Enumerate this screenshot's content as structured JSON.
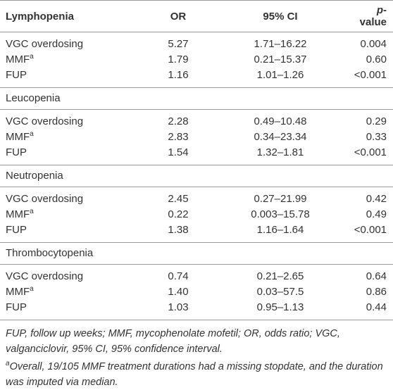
{
  "table": {
    "header": {
      "columns": [
        "OR",
        "95% CI"
      ],
      "p_italic": "p",
      "p_rest": "-value"
    },
    "sections": [
      {
        "title": "Lymphopenia",
        "rows": [
          {
            "label": "VGC overdosing",
            "or": "5.27",
            "ci": "1.71–16.22",
            "p": "0.004"
          },
          {
            "label": "MMF",
            "sup": "a",
            "or": "1.79",
            "ci": "0.21–15.37",
            "p": "0.60"
          },
          {
            "label": "FUP",
            "or": "1.16",
            "ci": "1.01–1.26",
            "p": "<0.001"
          }
        ]
      },
      {
        "title": "Leucopenia",
        "rows": [
          {
            "label": "VGC overdosing",
            "or": "2.28",
            "ci": "0.49–10.48",
            "p": "0.29"
          },
          {
            "label": "MMF",
            "sup": "a",
            "or": "2.83",
            "ci": "0.34–23.34",
            "p": "0.33"
          },
          {
            "label": "FUP",
            "or": "1.54",
            "ci": "1.32–1.81",
            "p": "<0.001"
          }
        ]
      },
      {
        "title": "Neutropenia",
        "rows": [
          {
            "label": "VGC overdosing",
            "or": "2.45",
            "ci": "0.27–21.99",
            "p": "0.42"
          },
          {
            "label": "MMF",
            "sup": "a",
            "or": "0.22",
            "ci": "0.003–15.78",
            "p": "0.49"
          },
          {
            "label": "FUP",
            "or": "1.38",
            "ci": "1.16–1.64",
            "p": "<0.001"
          }
        ]
      },
      {
        "title": "Thrombocytopenia",
        "rows": [
          {
            "label": "VGC overdosing",
            "or": "0.74",
            "ci": "0.21–2.65",
            "p": "0.64"
          },
          {
            "label": "MMF",
            "sup": "a",
            "or": "1.40",
            "ci": "0.03–57.5",
            "p": "0.86"
          },
          {
            "label": "FUP",
            "or": "1.03",
            "ci": "0.95–1.13",
            "p": "0.44"
          }
        ]
      }
    ],
    "footnotes": [
      {
        "text": "FUP, follow up weeks; MMF, mycophenolate mofetil; OR, odds ratio; VGC, valganciclovir, 95% CI, 95% confidence interval."
      },
      {
        "sup": "a",
        "text": "Overall, 19/105 MMF treatment durations had a missing stopdate, and the duration was imputed via median."
      }
    ]
  }
}
